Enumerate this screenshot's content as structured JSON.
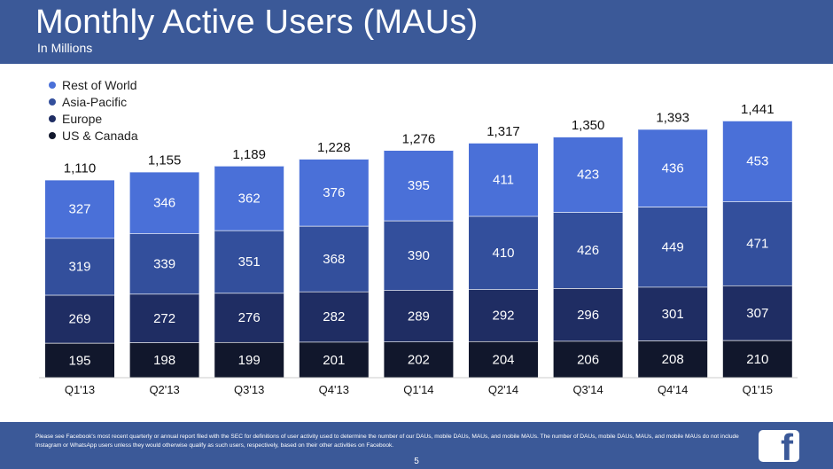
{
  "header": {
    "title": "Monthly Active Users (MAUs)",
    "subtitle": "In Millions"
  },
  "footer": {
    "disclaimer": "Please see Facebook's most recent quarterly or annual report filed with the SEC for definitions of user activity used to determine the number of our DAUs, mobile DAUs, MAUs, and mobile MAUs. The number of DAUs, mobile DAUs, MAUs, and mobile MAUs do not include Instagram or WhatsApp users unless they would otherwise qualify as such users, respectively, based on their other activities on Facebook.",
    "page_number": "5",
    "logo_letter": "f"
  },
  "colors": {
    "header_bg": "#3b5998",
    "rest_of_world": "#4a70d8",
    "asia_pacific": "#334f9c",
    "europe": "#1f2d63",
    "us_canada": "#11172c"
  },
  "chart_data": {
    "type": "bar",
    "stacked": true,
    "categories": [
      "Q1'13",
      "Q2'13",
      "Q3'13",
      "Q4'13",
      "Q1'14",
      "Q2'14",
      "Q3'14",
      "Q4'14",
      "Q1'15"
    ],
    "series": [
      {
        "name": "US & Canada",
        "color": "#11172c",
        "values": [
          195,
          198,
          199,
          201,
          202,
          204,
          206,
          208,
          210
        ]
      },
      {
        "name": "Europe",
        "color": "#1f2d63",
        "values": [
          269,
          272,
          276,
          282,
          289,
          292,
          296,
          301,
          307
        ]
      },
      {
        "name": "Asia-Pacific",
        "color": "#334f9c",
        "values": [
          319,
          339,
          351,
          368,
          390,
          410,
          426,
          449,
          471
        ]
      },
      {
        "name": "Rest of World",
        "color": "#4a70d8",
        "values": [
          327,
          346,
          362,
          376,
          395,
          411,
          423,
          436,
          453
        ]
      }
    ],
    "totals": [
      "1,110",
      "1,155",
      "1,189",
      "1,228",
      "1,276",
      "1,317",
      "1,350",
      "1,393",
      "1,441"
    ],
    "legend_order": [
      "Rest of World",
      "Asia-Pacific",
      "Europe",
      "US & Canada"
    ],
    "legend_position": "top-left",
    "ylim": [
      0,
      1500
    ],
    "grid": false
  }
}
